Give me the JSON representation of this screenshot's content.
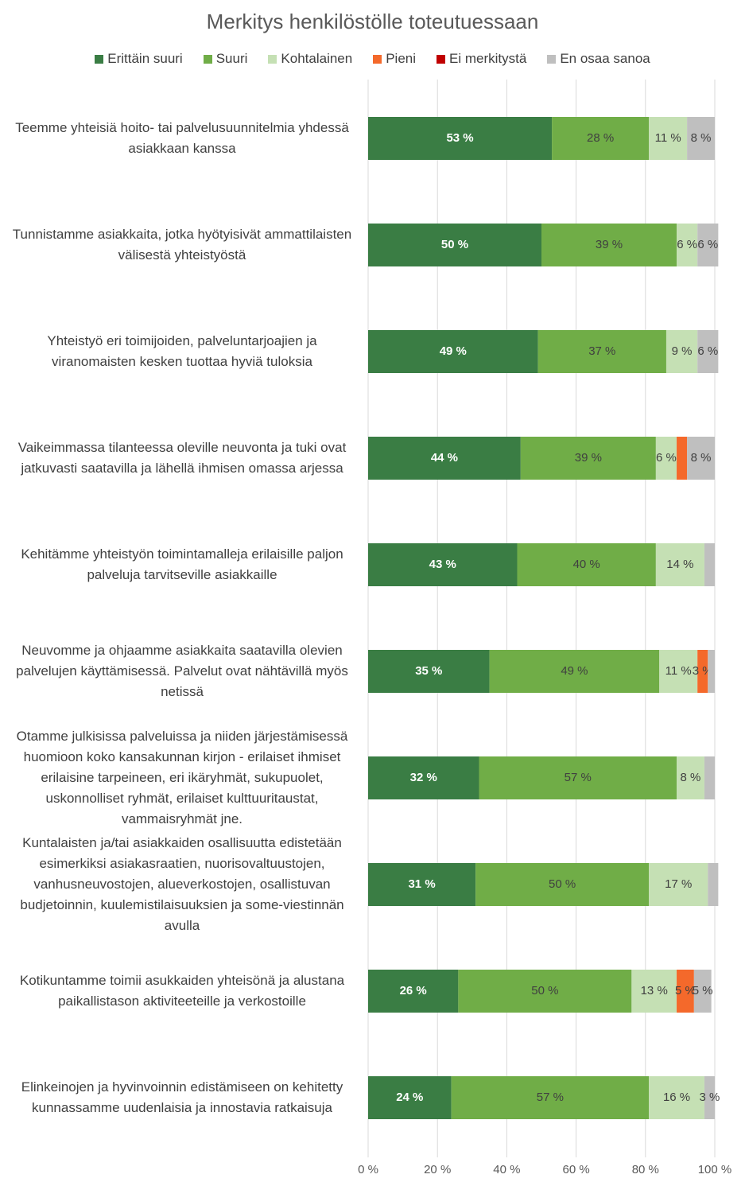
{
  "chart_data": {
    "type": "stacked-barh",
    "title": "Merkitys henkilöstölle toteutuessaan",
    "categories": [
      "Teemme yhteisiä hoito- tai palvelusuunnitelmia yhdessä asiakkaan kanssa",
      "Tunnistamme asiakkaita, jotka hyötyisivät ammattilaisten välisestä yhteistyöstä",
      "Yhteistyö eri toimijoiden, palveluntarjoajien ja viranomaisten kesken tuottaa hyviä tuloksia",
      "Vaikeimmassa tilanteessa oleville neuvonta ja tuki ovat jatkuvasti saatavilla ja lähellä ihmisen omassa arjessa",
      "Kehitämme yhteistyön toimintamalleja erilaisille paljon palveluja tarvitseville asiakkaille",
      "Neuvomme ja ohjaamme asiakkaita saatavilla olevien palvelujen käyttämisessä. Palvelut ovat nähtävillä myös netissä",
      "Otamme julkisissa palveluissa ja niiden järjestämisessä huomioon koko kansakunnan kirjon - erilaiset ihmiset erilaisine tarpeineen, eri ikäryhmät, sukupuolet, uskonnolliset ryhmät, erilaiset kulttuuritaustat, vammaisryhmät jne.",
      "Kuntalaisten ja/tai asiakkaiden osallisuutta edistetään esimerkiksi asiakasraatien, nuorisovaltuustojen, vanhusneuvostojen, alueverkostojen, osallistuvan budjetoinnin, kuulemistilaisuuksien ja some-viestinnän avulla",
      "Kotikuntamme toimii asukkaiden yhteisönä ja alustana paikallistason aktiviteeteille ja verkostoille",
      "Elinkeinojen ja hyvinvoinnin edistämiseen on kehitetty kunnassamme uudenlaisia ja innostavia ratkaisuja"
    ],
    "series": [
      {
        "name": "Erittäin suuri",
        "color": "#3a7d44",
        "values": [
          53,
          50,
          49,
          44,
          43,
          35,
          32,
          31,
          26,
          24
        ],
        "value_labels": [
          "53 %",
          "50 %",
          "49 %",
          "44 %",
          "43 %",
          "35 %",
          "32 %",
          "31 %",
          "26 %",
          "24 %"
        ]
      },
      {
        "name": "Suuri",
        "color": "#70ad47",
        "values": [
          28,
          39,
          37,
          39,
          40,
          49,
          57,
          50,
          50,
          57
        ],
        "value_labels": [
          "28 %",
          "39 %",
          "37 %",
          "39 %",
          "40 %",
          "49 %",
          "57 %",
          "50 %",
          "50 %",
          "57 %"
        ]
      },
      {
        "name": "Kohtalainen",
        "color": "#c5e0b4",
        "values": [
          11,
          6,
          9,
          6,
          14,
          11,
          8,
          17,
          13,
          16
        ],
        "value_labels": [
          "11 %",
          "6 %",
          "9 %",
          "6 %",
          "14 %",
          "11 %",
          "8 %",
          "17 %",
          "13 %",
          "16 %"
        ]
      },
      {
        "name": "Pieni",
        "color": "#f4692b",
        "values": [
          0,
          0,
          0,
          3,
          0,
          3,
          0,
          0,
          5,
          0
        ],
        "value_labels": [
          null,
          null,
          null,
          null,
          null,
          "3 %",
          null,
          null,
          "5 %",
          null
        ]
      },
      {
        "name": "Ei merkitystä",
        "color": "#c00000",
        "values": [
          0,
          0,
          0,
          0,
          0,
          0,
          0,
          0,
          0,
          0
        ],
        "value_labels": [
          null,
          null,
          null,
          null,
          null,
          null,
          null,
          null,
          null,
          null
        ]
      },
      {
        "name": "En osaa sanoa",
        "color": "#bfbfbf",
        "values": [
          8,
          6,
          6,
          8,
          3,
          2,
          3,
          3,
          5,
          3
        ],
        "value_labels": [
          "8 %",
          "6 %",
          "6 %",
          "8 %",
          null,
          null,
          null,
          null,
          "5 %",
          "3 %"
        ]
      }
    ],
    "xlim": [
      0,
      100
    ],
    "xticks": [
      {
        "value": 0,
        "label": "0 %"
      },
      {
        "value": 20,
        "label": "20 %"
      },
      {
        "value": 40,
        "label": "40 %"
      },
      {
        "value": 60,
        "label": "60 %"
      },
      {
        "value": 80,
        "label": "80 %"
      },
      {
        "value": 100,
        "label": "100 %"
      }
    ],
    "grid": true
  }
}
